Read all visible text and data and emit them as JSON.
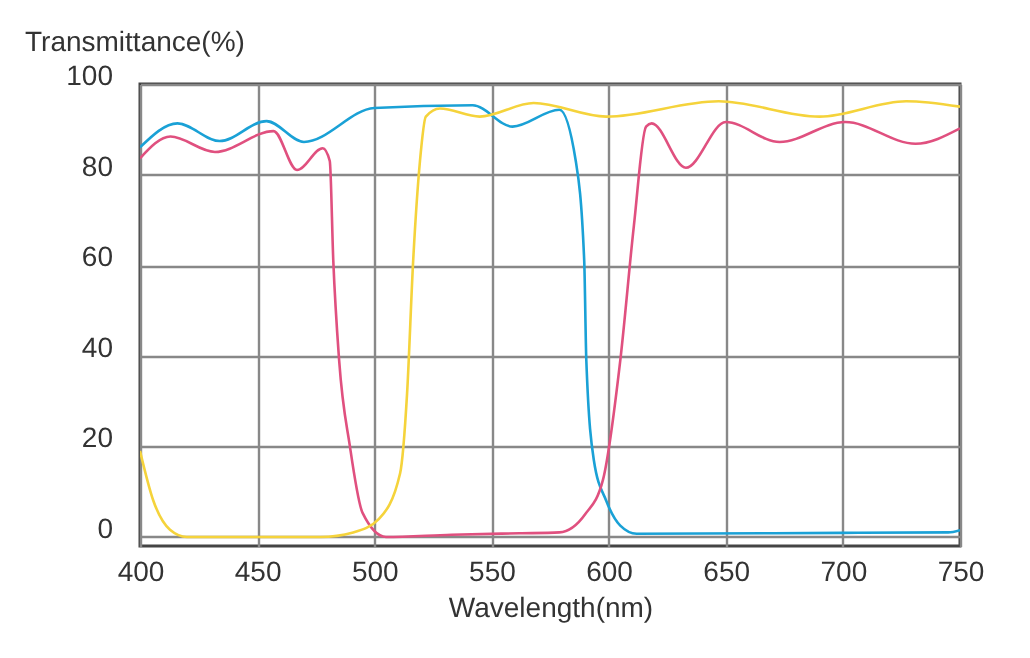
{
  "chart_data": {
    "type": "line",
    "xlabel": "Wavelength(nm)",
    "ylabel": "Transmittance(%)",
    "xlim": [
      400,
      750
    ],
    "xticks": [
      400,
      450,
      500,
      550,
      600,
      650,
      700,
      750
    ],
    "ylim": [
      -2,
      100
    ],
    "yticks": [
      0,
      20,
      40,
      60,
      80,
      100
    ],
    "grid": true,
    "marker": "none",
    "line_style": "solid",
    "series": [
      {
        "color": "#1aa1d6",
        "x": [
          400,
          416,
          434,
          454,
          470,
          500,
          542,
          559,
          579,
          586,
          589.6,
          590.5,
          593.7,
          599,
          605,
          612,
          700,
          745,
          750
        ],
        "values": [
          86,
          91.3,
          87.4,
          91.8,
          87.2,
          94.7,
          95.3,
          90.6,
          94.3,
          83,
          61,
          39,
          17,
          8,
          2.5,
          0.7,
          0.9,
          1,
          1.5
        ]
      },
      {
        "color": "#e0507f",
        "x": [
          400,
          413,
          432,
          457,
          467,
          478,
          481,
          482.5,
          485,
          489.6,
          495,
          505,
          533,
          562,
          579,
          590,
          597.6,
          605,
          610.8,
          616,
          618.4,
          633,
          650,
          673,
          701,
          731,
          750
        ],
        "values": [
          83.6,
          88.4,
          85,
          89.6,
          81,
          85.8,
          83,
          61,
          39,
          20,
          5.3,
          0,
          0.5,
          0.8,
          1,
          5,
          12.6,
          39,
          68.7,
          90.6,
          91.3,
          81.5,
          91.6,
          87.2,
          91.6,
          86.8,
          90.2
        ]
      },
      {
        "color": "#f5d33b",
        "x": [
          400,
          405.7,
          412.8,
          420,
          477,
          491,
          502,
          511,
          514,
          516.6,
          519.5,
          522,
          528,
          545,
          568,
          599,
          647,
          690,
          727,
          750
        ],
        "values": [
          19,
          8,
          1.6,
          0,
          0,
          1,
          4,
          14,
          31.7,
          61,
          83,
          92.8,
          94.6,
          92.8,
          95.8,
          92.8,
          96.2,
          92.8,
          96.2,
          95
        ]
      }
    ]
  }
}
